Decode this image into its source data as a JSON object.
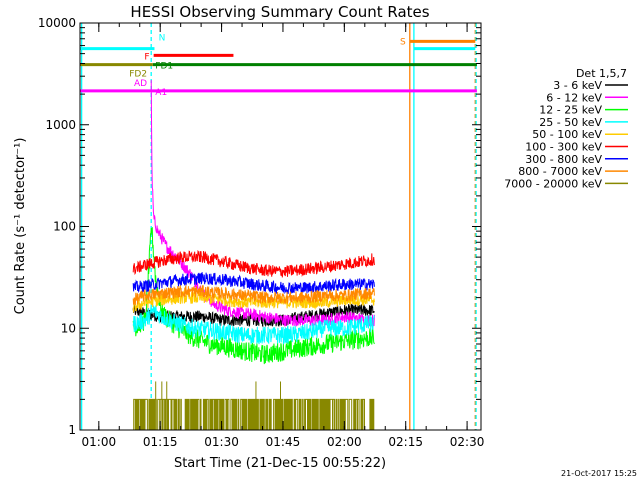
{
  "chart_data": {
    "type": "line",
    "title": "HESSI Observing Summary Count Rates",
    "xlabel": "Start Time (21-Dec-15 00:55:22)",
    "ylabel": "Count Rate (s⁻¹ detector⁻¹)",
    "ylog": true,
    "ylim": [
      1,
      10000
    ],
    "xlim_minutes": [
      0,
      98
    ],
    "x_ticks": [
      {
        "t": 4.6,
        "label": "01:00"
      },
      {
        "t": 19.6,
        "label": "01:15"
      },
      {
        "t": 34.6,
        "label": "01:30"
      },
      {
        "t": 49.6,
        "label": "01:45"
      },
      {
        "t": 64.6,
        "label": "02:00"
      },
      {
        "t": 79.6,
        "label": "02:15"
      },
      {
        "t": 94.6,
        "label": "02:30"
      }
    ],
    "y_ticks": [
      {
        "v": 1,
        "label": "1"
      },
      {
        "v": 10,
        "label": "10"
      },
      {
        "v": 100,
        "label": "100"
      },
      {
        "v": 1000,
        "label": "1000"
      },
      {
        "v": 10000,
        "label": "10000"
      }
    ],
    "legend": {
      "title": "Det 1,5,7",
      "position": "right"
    },
    "series": [
      {
        "name": "3 - 6 keV",
        "color": "#000000",
        "x": [
          13,
          16,
          20,
          25,
          30,
          35,
          40,
          45,
          50,
          55,
          60,
          65,
          70,
          72
        ],
        "y": [
          15,
          14,
          13,
          13,
          13,
          12,
          12,
          12,
          12,
          13,
          14,
          15,
          15,
          15
        ]
      },
      {
        "name": "6 - 12 keV",
        "color": "#ff00ff",
        "x": [
          17.4,
          17.6,
          18,
          19,
          21,
          24,
          27,
          30,
          33,
          36,
          40,
          45,
          50,
          55,
          60,
          65,
          70,
          72
        ],
        "y": [
          2500,
          300,
          120,
          90,
          65,
          48,
          34,
          22,
          17,
          15,
          14,
          13,
          12,
          12,
          12,
          13,
          12,
          12
        ]
      },
      {
        "name": "12 - 25 keV",
        "color": "#00ff00",
        "x": [
          13,
          16,
          17.5,
          18.5,
          20,
          24,
          28,
          32,
          36,
          40,
          45,
          50,
          55,
          60,
          65,
          70,
          72
        ],
        "y": [
          10,
          12,
          100,
          30,
          14,
          10,
          8,
          7,
          6.5,
          6,
          5.5,
          6,
          6.5,
          7,
          7.5,
          8,
          8
        ]
      },
      {
        "name": "25 - 50 keV",
        "color": "#00ffff",
        "x": [
          13,
          16,
          18,
          20,
          24,
          28,
          32,
          36,
          40,
          45,
          50,
          55,
          60,
          65,
          70,
          72
        ],
        "y": [
          11,
          12,
          15,
          13,
          11,
          10,
          9.5,
          9,
          8.5,
          8.5,
          8.5,
          9,
          10,
          10,
          11,
          11
        ]
      },
      {
        "name": "50 - 100 keV",
        "color": "#ffcc00",
        "x": [
          13,
          16,
          20,
          25,
          30,
          35,
          40,
          45,
          50,
          55,
          60,
          65,
          70,
          72
        ],
        "y": [
          16,
          18,
          19,
          20,
          20,
          19,
          18,
          18,
          18,
          18,
          18,
          19,
          19,
          19
        ]
      },
      {
        "name": "100 - 300 keV",
        "color": "#ff0000",
        "x": [
          13,
          16,
          20,
          25,
          30,
          35,
          40,
          45,
          50,
          55,
          60,
          65,
          70,
          72
        ],
        "y": [
          38,
          42,
          46,
          50,
          50,
          45,
          40,
          37,
          36,
          38,
          40,
          43,
          46,
          48
        ]
      },
      {
        "name": "300 - 800 keV",
        "color": "#0000ff",
        "x": [
          13,
          16,
          20,
          25,
          30,
          35,
          40,
          45,
          50,
          55,
          60,
          65,
          70,
          72
        ],
        "y": [
          25,
          26,
          28,
          30,
          31,
          30,
          28,
          26,
          25,
          25,
          26,
          27,
          27,
          27
        ]
      },
      {
        "name": "800 - 7000 keV",
        "color": "#ff8800",
        "x": [
          13,
          16,
          20,
          25,
          30,
          35,
          40,
          45,
          50,
          55,
          60,
          65,
          70,
          72
        ],
        "y": [
          19,
          21,
          22,
          23,
          23,
          22,
          21,
          20,
          20,
          20,
          21,
          21,
          22,
          22
        ]
      },
      {
        "name": "7000 - 20000 keV",
        "color": "#888800",
        "x": [
          13,
          72
        ],
        "y": [
          1,
          2
        ]
      }
    ],
    "flags": [
      {
        "label": "N",
        "color": "#00ffff",
        "level": 5600,
        "segments": [
          [
            0,
            18.2
          ],
          [
            81.6,
            96.6
          ]
        ]
      },
      {
        "label": "S",
        "color": "#ff8000",
        "level": 6600,
        "segments": [
          [
            80.6,
            96.6
          ]
        ]
      },
      {
        "label": "F",
        "color": "#ff0000",
        "level": 4800,
        "segments": [
          [
            18,
            37.5
          ]
        ]
      },
      {
        "label": "FD1",
        "color": "#008000",
        "level": 3900,
        "segments": [
          [
            17.8,
            97
          ]
        ]
      },
      {
        "label": "FD2",
        "color": "#888800",
        "level": 3900,
        "segments": [
          [
            0,
            17.8
          ]
        ]
      },
      {
        "label": "AD",
        "color": "#ff00ff",
        "level": 2150,
        "segments": [
          [
            0,
            17.6
          ]
        ]
      },
      {
        "label": "A1",
        "color": "#ff00ff",
        "level": 2150,
        "segments": [
          [
            17.6,
            97
          ]
        ]
      }
    ],
    "vertical_lines": [
      {
        "t": 0.4,
        "color": "#00ffff",
        "dashed": false
      },
      {
        "t": 17.4,
        "color": "#00ffff",
        "dashed": true
      },
      {
        "t": 80.6,
        "color": "#ff8000",
        "dashed": false
      },
      {
        "t": 81.6,
        "color": "#00ffff",
        "dashed": false
      },
      {
        "t": 96.6,
        "color": "#ff8000",
        "dashed": true
      },
      {
        "t": 96.8,
        "color": "#00ffff",
        "dashed": true
      }
    ],
    "timestamp": "21-Oct-2017 15:25"
  }
}
